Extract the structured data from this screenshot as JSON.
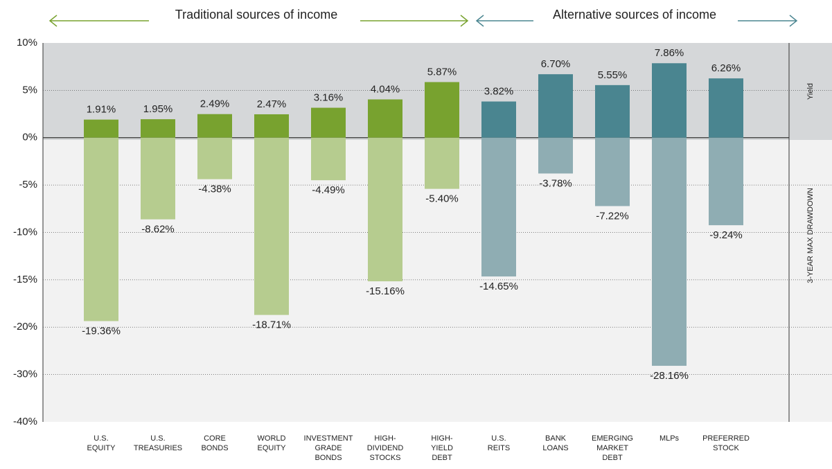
{
  "chart_data": {
    "type": "bar",
    "group_labels": [
      "Traditional sources of income",
      "Alternative sources of income"
    ],
    "group_colors": [
      "#78a22f",
      "#4a8590"
    ],
    "categories": [
      "U.S.\nEQUITY",
      "U.S.\nTREASURIES",
      "CORE\nBONDS",
      "WORLD\nEQUITY",
      "INVESTMENT\nGRADE\nBONDS",
      "HIGH-\nDIVIDEND\nSTOCKS",
      "HIGH-\nYIELD\nDEBT",
      "U.S.\nREITS",
      "BANK\nLOANS",
      "EMERGING\nMARKET\nDEBT",
      "MLPs",
      "PREFERRED\nSTOCK"
    ],
    "series": [
      {
        "name": "Yield",
        "colors": [
          "#78a22f",
          "#78a22f",
          "#78a22f",
          "#78a22f",
          "#78a22f",
          "#78a22f",
          "#78a22f",
          "#4a8590",
          "#4a8590",
          "#4a8590",
          "#4a8590",
          "#4a8590"
        ],
        "values": [
          1.91,
          1.95,
          2.49,
          2.47,
          3.16,
          4.04,
          5.87,
          3.82,
          6.7,
          5.55,
          7.86,
          6.26
        ],
        "value_labels": [
          "1.91%",
          "1.95%",
          "2.49%",
          "2.47%",
          "3.16%",
          "4.04%",
          "5.87%",
          "3.82%",
          "6.70%",
          "5.55%",
          "7.86%",
          "6.26%"
        ]
      },
      {
        "name": "3-YEAR MAX DRAWDOWN",
        "colors": [
          "#b6cc8f",
          "#b6cc8f",
          "#b6cc8f",
          "#b6cc8f",
          "#b6cc8f",
          "#b6cc8f",
          "#b6cc8f",
          "#8fadb3",
          "#8fadb3",
          "#8fadb3",
          "#8fadb3",
          "#8fadb3"
        ],
        "values": [
          -19.36,
          -8.62,
          -4.38,
          -18.71,
          -4.49,
          -15.16,
          -5.4,
          -14.65,
          -3.78,
          -7.22,
          -28.16,
          -9.24
        ],
        "value_labels": [
          "-19.36%",
          "-8.62%",
          "-4.38%",
          "-18.71%",
          "-4.49%",
          "-15.16%",
          "-5.40%",
          "-14.65%",
          "-3.78%",
          "-7.22%",
          "-28.16%",
          "-9.24%"
        ]
      }
    ],
    "ylim": [
      -40,
      10
    ],
    "yticks": [
      {
        "value": 10,
        "label": "10%"
      },
      {
        "value": 5,
        "label": "5%"
      },
      {
        "value": 0,
        "label": "0%"
      },
      {
        "value": -5,
        "label": "-5%"
      },
      {
        "value": -10,
        "label": "-10%"
      },
      {
        "value": -15,
        "label": "-15%"
      },
      {
        "value": -20,
        "label": "-20%"
      },
      {
        "value": -30,
        "label": "-30%"
      },
      {
        "value": -40,
        "label": "-40%"
      }
    ],
    "grid": true
  }
}
